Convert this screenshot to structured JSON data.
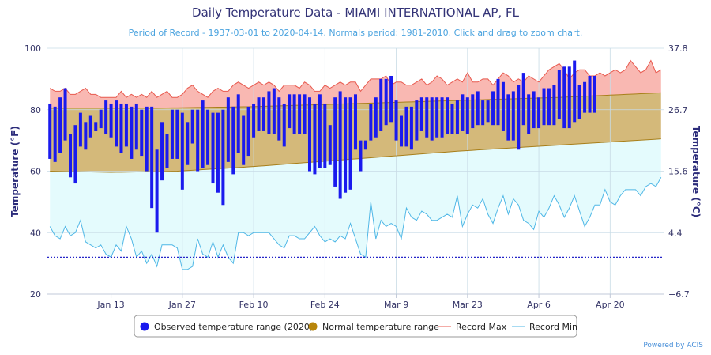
{
  "chart_data": {
    "type": "bar",
    "title": "Daily Temperature Data - MIAMI INTERNATIONAL AP, FL",
    "subtitle": "Period of Record - 1937-03-01 to 2020-04-14. Normals period: 1981-2010. Click and drag to zoom chart.",
    "ylabel": "Temperature (°F)",
    "ylabel_right": "Temperature (°C)",
    "ylim": [
      20,
      100
    ],
    "ylim_celsius": [
      -6.7,
      37.8
    ],
    "yticks": [
      "20",
      "40",
      "60",
      "80",
      "100"
    ],
    "yticks_right": [
      "−6.7",
      "4.4",
      "15.6",
      "26.7",
      "37.8"
    ],
    "x_start": "Jan 1",
    "num_days": 121,
    "xticks": [
      {
        "label": "Jan 13",
        "day": 12
      },
      {
        "label": "Jan 27",
        "day": 26
      },
      {
        "label": "Feb 10",
        "day": 40
      },
      {
        "label": "Feb 24",
        "day": 54
      },
      {
        "label": "Mar 9",
        "day": 68
      },
      {
        "label": "Mar 23",
        "day": 82
      },
      {
        "label": "Apr 6",
        "day": 96
      },
      {
        "label": "Apr 20",
        "day": 110
      }
    ],
    "record_low_line": 32,
    "normal_max": [
      [
        0,
        80.5
      ],
      [
        20,
        80.5
      ],
      [
        40,
        81
      ],
      [
        60,
        82
      ],
      [
        80,
        83
      ],
      [
        100,
        84
      ],
      [
        120,
        85.5
      ]
    ],
    "normal_min": [
      [
        0,
        60
      ],
      [
        12,
        59.6
      ],
      [
        25,
        60
      ],
      [
        40,
        61.5
      ],
      [
        60,
        64
      ],
      [
        80,
        66.5
      ],
      [
        100,
        68.5
      ],
      [
        120,
        70.5
      ]
    ],
    "record_max": [
      87,
      86,
      86,
      87,
      85,
      85,
      86,
      87,
      85,
      85,
      84,
      84,
      84,
      84,
      86,
      84,
      85,
      84,
      85,
      84,
      86,
      84,
      85,
      86,
      84,
      84,
      85,
      87,
      88,
      86,
      85,
      84,
      86,
      87,
      86,
      86,
      88,
      89,
      88,
      87,
      88,
      89,
      88,
      89,
      88,
      86,
      88,
      88,
      88,
      87,
      89,
      88,
      86,
      86,
      88,
      87,
      88,
      89,
      88,
      89,
      89,
      86,
      88,
      90,
      90,
      90,
      91,
      88,
      89,
      89,
      88,
      88,
      89,
      90,
      88,
      89,
      91,
      90,
      88,
      89,
      90,
      89,
      92,
      89,
      89,
      90,
      90,
      88,
      90,
      92,
      91,
      89,
      90,
      89,
      91,
      90,
      89,
      91,
      93,
      94,
      95,
      93,
      90,
      92,
      93,
      93,
      91,
      91,
      92,
      91,
      92,
      93,
      92,
      93,
      96,
      94,
      92,
      93,
      96,
      92,
      93
    ],
    "record_min": [
      42,
      39,
      38,
      42,
      39,
      40,
      44,
      37,
      36,
      35,
      36,
      33,
      32,
      36,
      34,
      42,
      38,
      32,
      34,
      30,
      33,
      29,
      36,
      36,
      36,
      35,
      28,
      28,
      29,
      38,
      33,
      32,
      37,
      32,
      36,
      32,
      30,
      40,
      40,
      39,
      40,
      40,
      40,
      40,
      38,
      36,
      35,
      39,
      39,
      38,
      38,
      40,
      42,
      39,
      37,
      38,
      37,
      39,
      38,
      43,
      38,
      33,
      32,
      50,
      38,
      44,
      42,
      43,
      42,
      38,
      48,
      45,
      44,
      47,
      46,
      44,
      44,
      45,
      46,
      45,
      52,
      42,
      46,
      49,
      48,
      51,
      46,
      43,
      48,
      52,
      46,
      51,
      49,
      44,
      43,
      41,
      47,
      45,
      48,
      52,
      49,
      45,
      48,
      52,
      47,
      42,
      45,
      49,
      49,
      54,
      50,
      49,
      52,
      54,
      54,
      54,
      52,
      55,
      56,
      55,
      58
    ],
    "series": [
      {
        "name": "Observed temperature range (2020)",
        "high": [
          82,
          81,
          84,
          87,
          72,
          75,
          79,
          76,
          78,
          76,
          80,
          83,
          82,
          83,
          82,
          82,
          81,
          82,
          80,
          81,
          81,
          67,
          76,
          72,
          80,
          80,
          79,
          76,
          80,
          80,
          83,
          80,
          79,
          79,
          80,
          84,
          81,
          85,
          78,
          81,
          82,
          84,
          84,
          86,
          87,
          84,
          82,
          85,
          85,
          85,
          85,
          84,
          82,
          85,
          82,
          75,
          84,
          86,
          84,
          84,
          85,
          70,
          70,
          82,
          84,
          90,
          90,
          91,
          83,
          78,
          81,
          81,
          83,
          84,
          84,
          84,
          84,
          84,
          84,
          82,
          83,
          85,
          84,
          85,
          86,
          83,
          83,
          86,
          90,
          89,
          85,
          86,
          88,
          92,
          85,
          86,
          84,
          87,
          87,
          88,
          93,
          94,
          94,
          96,
          88,
          89,
          91,
          91
        ],
        "low": [
          64,
          63,
          66,
          70,
          58,
          56,
          68,
          67,
          71,
          73,
          74,
          72,
          71,
          68,
          66,
          68,
          64,
          67,
          65,
          60,
          48,
          40,
          57,
          61,
          64,
          64,
          54,
          62,
          69,
          60,
          61,
          62,
          56,
          53,
          49,
          63,
          59,
          66,
          62,
          65,
          71,
          73,
          73,
          72,
          72,
          70,
          68,
          74,
          72,
          72,
          72,
          60,
          59,
          61,
          61,
          62,
          55,
          51,
          53,
          54,
          67,
          60,
          67,
          70,
          71,
          73,
          75,
          76,
          70,
          68,
          68,
          67,
          70,
          73,
          71,
          70,
          71,
          71,
          72,
          72,
          72,
          73,
          72,
          74,
          75,
          75,
          76,
          75,
          75,
          73,
          70,
          70,
          67,
          75,
          72,
          74,
          74,
          75,
          75,
          75,
          77,
          74,
          74,
          76,
          77,
          79,
          79,
          79
        ]
      },
      {
        "name": "Normal temperature range"
      },
      {
        "name": "Record Max"
      },
      {
        "name": "Record Min"
      }
    ]
  },
  "colors": {
    "observed": "#1a1aee",
    "normal_fill": "#d4b97a",
    "normal_line": "#a87f1a",
    "normal_marker": "#b8860b",
    "record_max": "#e85a4f",
    "record_max_fill": "#f9b8b2",
    "record_min": "#4fb7e6",
    "record_min_fill": "#e4fbfd",
    "record_low_line": "#2626c8"
  },
  "credit": "Powered by ACIS"
}
